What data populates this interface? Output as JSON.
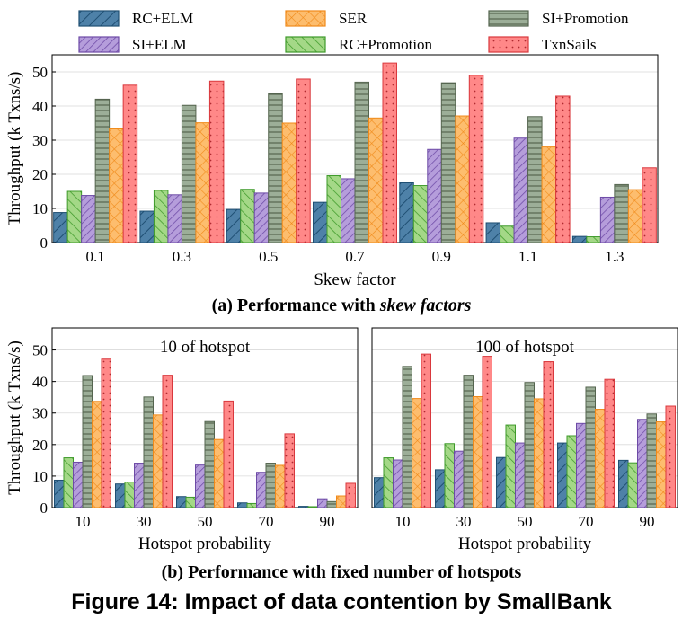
{
  "legend": [
    {
      "name": "RC+ELM",
      "fill": "#4e81a8",
      "stroke": "#1f4f73",
      "pattern": "diag"
    },
    {
      "name": "SI+ELM",
      "fill": "#b59ddb",
      "stroke": "#6d4aa6",
      "pattern": "diag-dense"
    },
    {
      "name": "SER",
      "fill": "#fdbd6e",
      "stroke": "#f08a1a",
      "pattern": "cross"
    },
    {
      "name": "RC+Promotion",
      "fill": "#a4d887",
      "stroke": "#3e9a2a",
      "pattern": "back-diag"
    },
    {
      "name": "SI+Promotion",
      "fill": "#9cae98",
      "stroke": "#55654f",
      "pattern": "horizontal"
    },
    {
      "name": "TxnSails",
      "fill": "#ff8888",
      "stroke": "#d9383d",
      "pattern": "dots"
    }
  ],
  "chart_data": [
    {
      "type": "bar",
      "title": "(a) Performance with skew factors",
      "xlabel": "Skew factor",
      "ylabel": "Throughput (k Txns/s)",
      "ylim": [
        0,
        55
      ],
      "yticks": [
        0,
        10,
        20,
        30,
        40,
        50
      ],
      "categories": [
        "0.1",
        "0.3",
        "0.5",
        "0.7",
        "0.9",
        "1.1",
        "1.3"
      ],
      "series": [
        {
          "name": "RC+ELM",
          "values": [
            8.8,
            9.2,
            9.7,
            11.8,
            17.5,
            5.8,
            1.8
          ]
        },
        {
          "name": "RC+Promotion",
          "values": [
            15.0,
            15.3,
            15.6,
            19.6,
            16.7,
            4.8,
            1.7
          ]
        },
        {
          "name": "SI+ELM",
          "values": [
            13.8,
            14.0,
            14.5,
            18.7,
            27.3,
            30.6,
            13.3
          ]
        },
        {
          "name": "SI+Promotion",
          "values": [
            42.0,
            40.2,
            43.6,
            47.0,
            46.8,
            36.9,
            17.0
          ]
        },
        {
          "name": "SER",
          "values": [
            33.3,
            35.1,
            35.0,
            36.5,
            37.1,
            28.0,
            15.5
          ]
        },
        {
          "name": "TxnSails",
          "values": [
            46.1,
            47.3,
            47.9,
            52.6,
            49.0,
            42.9,
            21.9
          ]
        }
      ]
    },
    {
      "type": "bar",
      "title": "10 of hotspot",
      "xlabel": "Hotspot probability",
      "ylabel": "Throughput (k Txns/s)",
      "ylim": [
        0,
        57
      ],
      "yticks": [
        0,
        10,
        20,
        30,
        40,
        50
      ],
      "categories": [
        "10",
        "30",
        "50",
        "70",
        "90"
      ],
      "series": [
        {
          "name": "RC+ELM",
          "values": [
            8.7,
            7.5,
            3.5,
            1.5,
            0.4
          ]
        },
        {
          "name": "RC+Promotion",
          "values": [
            15.8,
            8.1,
            3.3,
            1.3,
            0.3
          ]
        },
        {
          "name": "SI+ELM",
          "values": [
            14.4,
            14.1,
            13.5,
            11.2,
            2.8
          ]
        },
        {
          "name": "SI+Promotion",
          "values": [
            41.9,
            35.1,
            27.3,
            14.1,
            1.9
          ]
        },
        {
          "name": "SER",
          "values": [
            33.7,
            29.4,
            21.6,
            13.4,
            3.7
          ]
        },
        {
          "name": "TxnSails",
          "values": [
            47.1,
            42.0,
            33.8,
            23.4,
            7.7
          ]
        }
      ]
    },
    {
      "type": "bar",
      "title": "100 of hotspot",
      "xlabel": "Hotspot probability",
      "ylabel": "",
      "ylim": [
        0,
        57
      ],
      "yticks": [],
      "categories": [
        "10",
        "30",
        "50",
        "70",
        "90"
      ],
      "series": [
        {
          "name": "RC+ELM",
          "values": [
            9.5,
            12.0,
            15.9,
            20.5,
            15.0
          ]
        },
        {
          "name": "RC+Promotion",
          "values": [
            15.8,
            20.3,
            26.2,
            22.8,
            14.2
          ]
        },
        {
          "name": "SI+ELM",
          "values": [
            15.1,
            17.9,
            20.5,
            26.7,
            28.0
          ]
        },
        {
          "name": "SI+Promotion",
          "values": [
            44.8,
            42.0,
            39.7,
            38.2,
            29.7
          ]
        },
        {
          "name": "SER",
          "values": [
            34.6,
            35.2,
            34.5,
            31.2,
            27.2
          ]
        },
        {
          "name": "TxnSails",
          "values": [
            48.7,
            48.0,
            46.3,
            40.7,
            32.2
          ]
        }
      ]
    }
  ],
  "captions": {
    "sub_a_prefix": "(a) Performance with ",
    "sub_a_italic": "skew factors",
    "sub_b": "(b) Performance with fixed number of hotspots",
    "figure": "Figure 14: Impact of data contention by SmallBank"
  }
}
